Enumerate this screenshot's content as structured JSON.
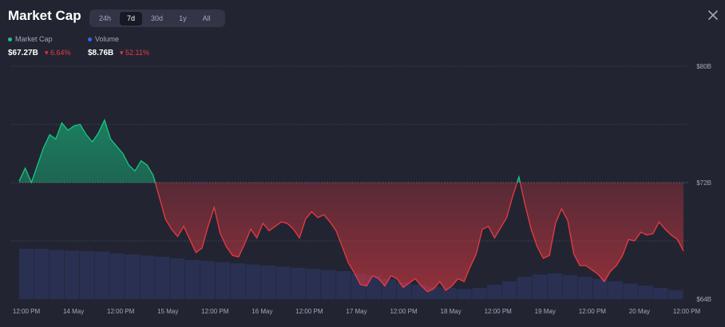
{
  "header": {
    "title": "Market Cap"
  },
  "tabs": [
    {
      "label": "24h"
    },
    {
      "label": "7d",
      "active": true
    },
    {
      "label": "30d"
    },
    {
      "label": "1y"
    },
    {
      "label": "All"
    }
  ],
  "legend": {
    "market_cap": {
      "label": "Market Cap",
      "value": "$67.27B",
      "change": "6.64%",
      "color": "#16c784"
    },
    "volume": {
      "label": "Volume",
      "value": "$8.76B",
      "change": "52.11%",
      "color": "#3861fb"
    }
  },
  "colors": {
    "up": "#16c784",
    "down": "#ea3943",
    "volume": "#2a3358"
  },
  "chart_data": {
    "type": "area",
    "y_tick_labels": [
      "$80B",
      "$72B",
      "$64B"
    ],
    "y_ticks": [
      80,
      72,
      64
    ],
    "x_tick_labels": [
      "12:00 PM",
      "14 May",
      "12:00 PM",
      "15 May",
      "12:00 PM",
      "16 May",
      "12:00 PM",
      "17 May",
      "12:00 PM",
      "18 May",
      "12:00 PM",
      "19 May",
      "12:00 PM",
      "20 May",
      "12:00 PM"
    ],
    "ylim": [
      64,
      80
    ],
    "baseline": 72,
    "series": [
      {
        "name": "Market Cap",
        "values": [
          72.1,
          73.0,
          72.0,
          73.2,
          74.4,
          75.3,
          75.0,
          76.1,
          75.6,
          75.9,
          76.0,
          75.3,
          74.8,
          75.4,
          76.3,
          75.0,
          74.5,
          74.0,
          73.2,
          72.8,
          73.5,
          73.2,
          72.5,
          71.0,
          69.5,
          68.8,
          68.3,
          69.0,
          68.1,
          67.2,
          67.5,
          69.0,
          70.3,
          68.5,
          67.6,
          67.0,
          66.9,
          67.8,
          68.8,
          68.2,
          69.2,
          68.7,
          69.0,
          69.3,
          69.2,
          68.8,
          68.2,
          69.5,
          70.0,
          69.6,
          69.8,
          69.3,
          68.7,
          67.6,
          66.5,
          65.8,
          65.0,
          64.9,
          65.6,
          65.4,
          64.9,
          65.6,
          65.4,
          64.8,
          65.1,
          65.4,
          64.9,
          64.5,
          64.7,
          65.2,
          64.6,
          64.9,
          65.4,
          65.2,
          66.2,
          67.1,
          68.8,
          69.0,
          68.2,
          68.9,
          69.6,
          71.1,
          72.4,
          70.5,
          68.8,
          67.6,
          66.8,
          67.0,
          69.2,
          70.2,
          69.4,
          67.1,
          66.3,
          66.3,
          66.0,
          65.7,
          65.2,
          65.9,
          66.3,
          67.0,
          68.1,
          68.0,
          68.6,
          68.4,
          68.5,
          69.3,
          68.8,
          68.4,
          68.1,
          67.3
        ],
        "color": "#ea3943"
      },
      {
        "name": "Volume",
        "values": [
          9.0,
          9.0,
          8.8,
          8.7,
          8.6,
          8.5,
          8.2,
          8.0,
          7.8,
          7.6,
          7.3,
          7.0,
          6.8,
          6.6,
          6.4,
          6.2,
          6.0,
          5.8,
          5.6,
          5.4,
          5.2,
          5.0,
          4.6,
          4.2,
          3.6,
          3.0,
          2.6,
          2.2,
          2.0,
          1.8,
          2.0,
          2.6,
          3.2,
          4.0,
          4.4,
          4.6,
          4.3,
          4.0,
          3.6,
          3.2,
          2.8,
          2.4,
          2.0,
          1.6
        ],
        "color": "#2a3358"
      }
    ]
  }
}
